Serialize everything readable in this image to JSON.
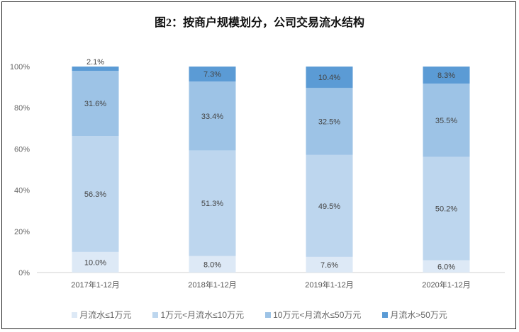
{
  "chart_data": {
    "type": "bar",
    "stacked": true,
    "title": "图2：按商户规模划分，公司交易流水结构",
    "categories": [
      "2017年1-12月",
      "2018年1-12月",
      "2019年1-12月",
      "2020年1-12月"
    ],
    "series": [
      {
        "name": "月流水≤1万元",
        "color": "#dde9f6",
        "values": [
          10.0,
          8.0,
          7.6,
          6.0
        ]
      },
      {
        "name": "1万元<月流水≤10万元",
        "color": "#bdd6ee",
        "values": [
          56.3,
          51.3,
          49.5,
          50.2
        ]
      },
      {
        "name": "10万元<月流水≤50万元",
        "color": "#9dc3e6",
        "values": [
          31.6,
          33.4,
          32.5,
          35.5
        ]
      },
      {
        "name": "月流水>50万元",
        "color": "#5b9bd5",
        "values": [
          2.1,
          7.3,
          10.4,
          8.3
        ]
      }
    ],
    "yticks": [
      "0%",
      "20%",
      "40%",
      "60%",
      "80%",
      "100%"
    ],
    "ylim": [
      0,
      100
    ],
    "grid": false,
    "legend_position": "bottom"
  }
}
